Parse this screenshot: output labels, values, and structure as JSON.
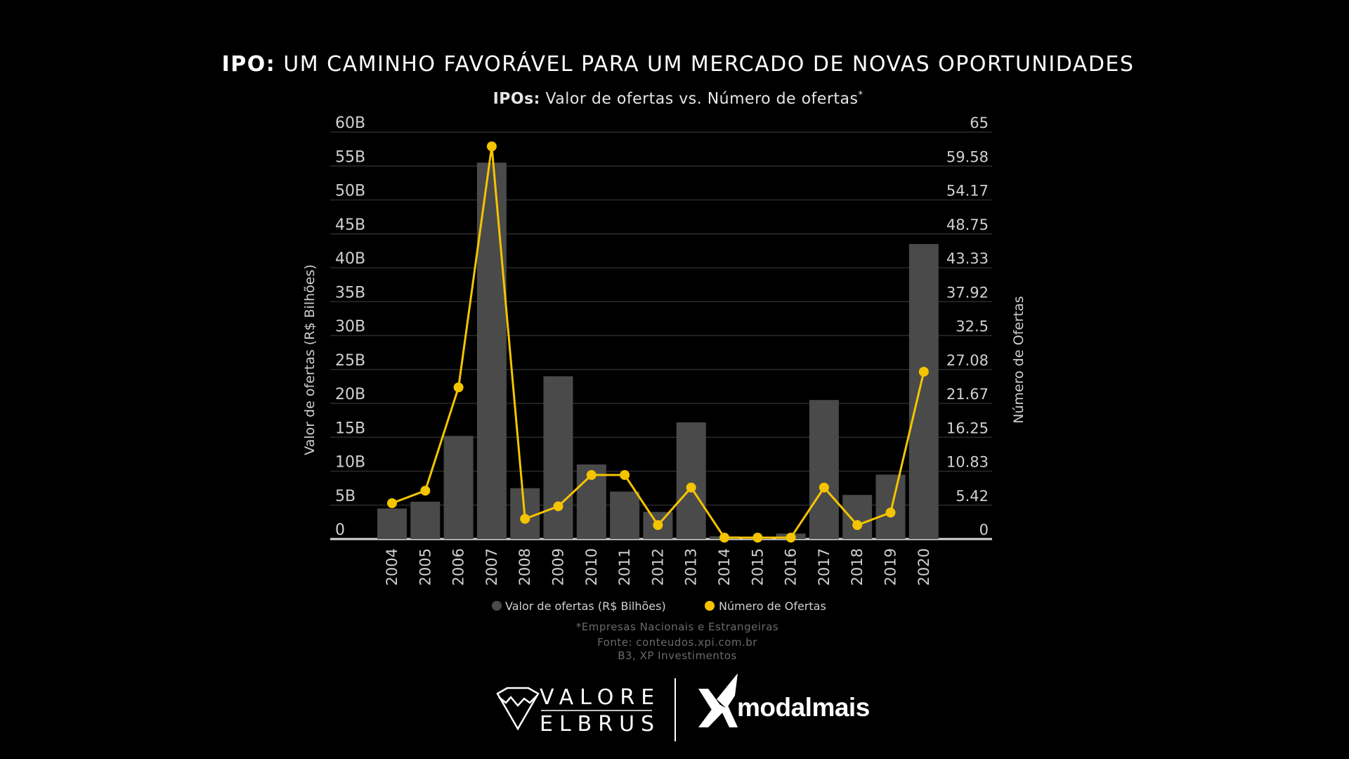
{
  "header": {
    "title_bold": "IPO:",
    "title_rest": " UM CAMINHO FAVORÁVEL PARA UM MERCADO DE NOVAS OPORTUNIDADES",
    "subtitle_bold": "IPOs:",
    "subtitle_rest": " Valor de ofertas vs. Número de ofertas",
    "subtitle_mark": "*"
  },
  "chart_data": {
    "type": "bar",
    "categories": [
      "2004",
      "2005",
      "2006",
      "2007",
      "2008",
      "2009",
      "2010",
      "2011",
      "2012",
      "2013",
      "2014",
      "2015",
      "2016",
      "2017",
      "2018",
      "2019",
      "2020"
    ],
    "series": [
      {
        "name": "Valor de ofertas (R$ Bilhões)",
        "type": "bar",
        "axis": "left",
        "color": "#4a4a4a",
        "values": [
          4.5,
          5.5,
          15.2,
          55.5,
          7.5,
          24.0,
          11.0,
          7.0,
          4.0,
          17.2,
          0.4,
          0.3,
          0.8,
          20.5,
          6.5,
          9.5,
          43.5
        ]
      },
      {
        "name": "Número de Ofertas",
        "type": "line",
        "axis": "right",
        "color": "#f5c400",
        "values": [
          5.5,
          7.5,
          24,
          62.5,
          3,
          5,
          10,
          10,
          2,
          8,
          0,
          0,
          0,
          8,
          2,
          4,
          26.5
        ]
      }
    ],
    "ylabel_left": "Valor de ofertas (R$ Bilhões)",
    "ylabel_right": "Número de Ofertas",
    "ylim_left": [
      0,
      60
    ],
    "ylim_right": [
      0,
      65
    ],
    "yticks_left": [
      "0",
      "5B",
      "10B",
      "15B",
      "20B",
      "25B",
      "30B",
      "35B",
      "40B",
      "45B",
      "50B",
      "55B",
      "60B"
    ],
    "yticks_right": [
      "0",
      "5.42",
      "10.83",
      "16.25",
      "21.67",
      "27.08",
      "32.5",
      "37.92",
      "43.33",
      "48.75",
      "54.17",
      "59.58",
      "65"
    ],
    "grid": true,
    "legend_position": "bottom",
    "legend": [
      "Valor de ofertas (R$ Bilhões)",
      "Número de Ofertas"
    ]
  },
  "notes": {
    "line1": "*Empresas Nacionais e Estrangeiras",
    "line2": "Fonte: conteudos.xpi.com.br",
    "line3": "B3, XP Investimentos"
  },
  "logos": {
    "valore_line1": "VALORE",
    "valore_line2": "ELBRUS",
    "modal": "modalmais"
  }
}
